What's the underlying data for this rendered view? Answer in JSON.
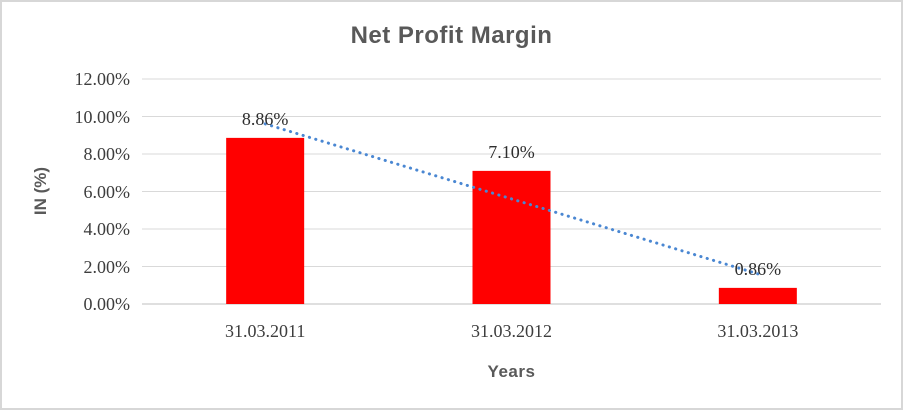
{
  "chart_data": {
    "type": "bar",
    "title": "Net Profit Margin",
    "xlabel": "Years",
    "ylabel": "IN (%)",
    "categories": [
      "31.03.2011",
      "31.03.2012",
      "31.03.2013"
    ],
    "values": [
      8.86,
      7.1,
      0.86
    ],
    "data_labels": [
      "8.86%",
      "7.10%",
      "0.86%"
    ],
    "ylim": [
      0,
      12
    ],
    "ytick_step": 2,
    "ytick_labels": [
      "0.00%",
      "2.00%",
      "4.00%",
      "6.00%",
      "8.00%",
      "10.00%",
      "12.00%"
    ],
    "grid": true,
    "legend": "none",
    "trendline": {
      "type": "linear",
      "style": "dotted"
    },
    "colors": {
      "bar": "#ff0000",
      "trendline": "#4a87d2",
      "gridline": "#d9d9d9",
      "axis_line": "#bfbfbf",
      "title_text": "#595959",
      "axis_title_text": "#595959",
      "tick_text": "#3d3d3d",
      "data_label_text": "#2e2e2e",
      "background": "#ffffff",
      "chart_border": "#d7d7d7"
    }
  }
}
